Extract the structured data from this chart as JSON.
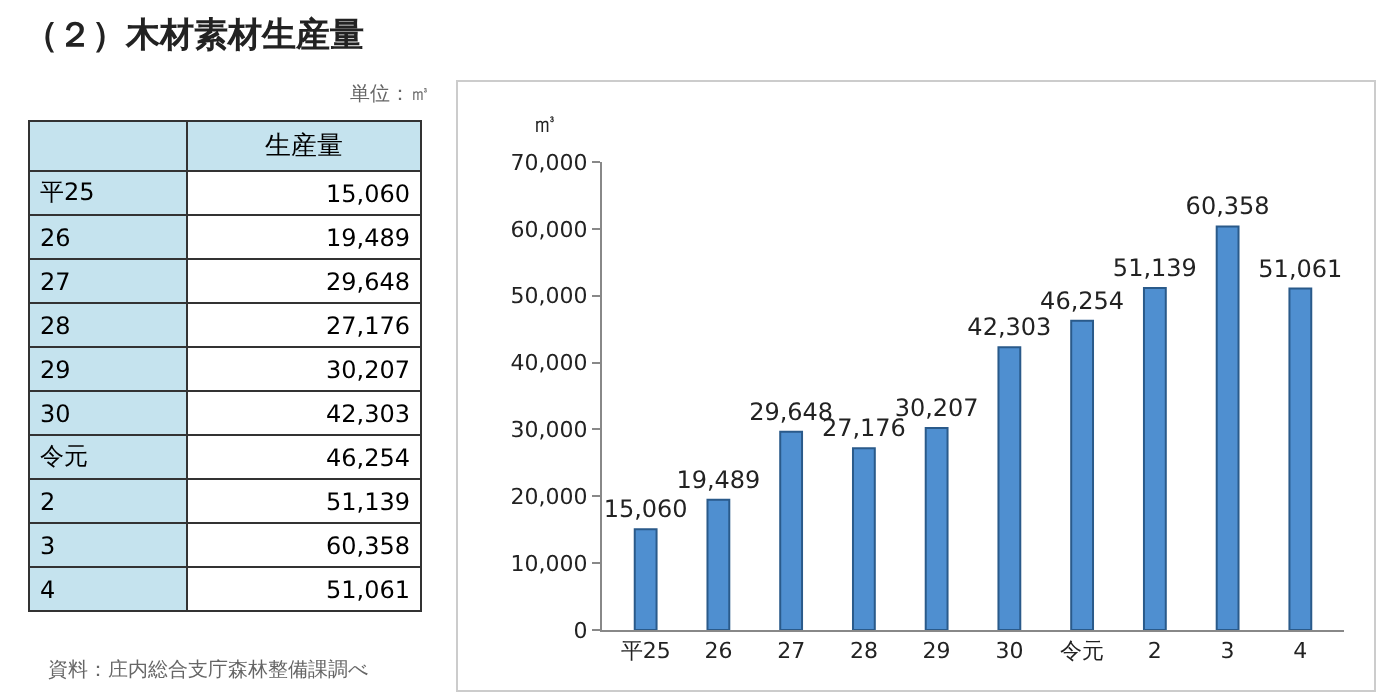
{
  "chart_data": {
    "type": "bar",
    "title": "（２）木材素材生産量",
    "ylabel": "㎥",
    "annotations": [
      "単位：㎥",
      "資料：庄内総合支庁森林整備課調べ",
      "生産量"
    ],
    "categories": [
      "平25",
      "26",
      "27",
      "28",
      "29",
      "30",
      "令元",
      "2",
      "3",
      "4"
    ],
    "values": [
      15060,
      19489,
      29648,
      27176,
      30207,
      42303,
      46254,
      51139,
      60358,
      51061
    ],
    "value_labels": [
      "15,060",
      "19,489",
      "29,648",
      "27,176",
      "30,207",
      "42,303",
      "46,254",
      "51,139",
      "60,358",
      "51,061"
    ],
    "color": "#4f8fd0",
    "ylim": [
      0,
      70000
    ],
    "yticks": [
      0,
      {
        "value": 10000,
        "label": "10,000"
      },
      {
        "value": 20000,
        "label": "20,000"
      },
      {
        "value": 30000,
        "label": "30,000"
      },
      {
        "value": 40000,
        "label": "40,000"
      },
      {
        "value": 50000,
        "label": "50,000"
      },
      {
        "value": 60000,
        "label": "60,000"
      },
      {
        "value": 70000,
        "label": "70,000"
      }
    ],
    "grid": false
  }
}
